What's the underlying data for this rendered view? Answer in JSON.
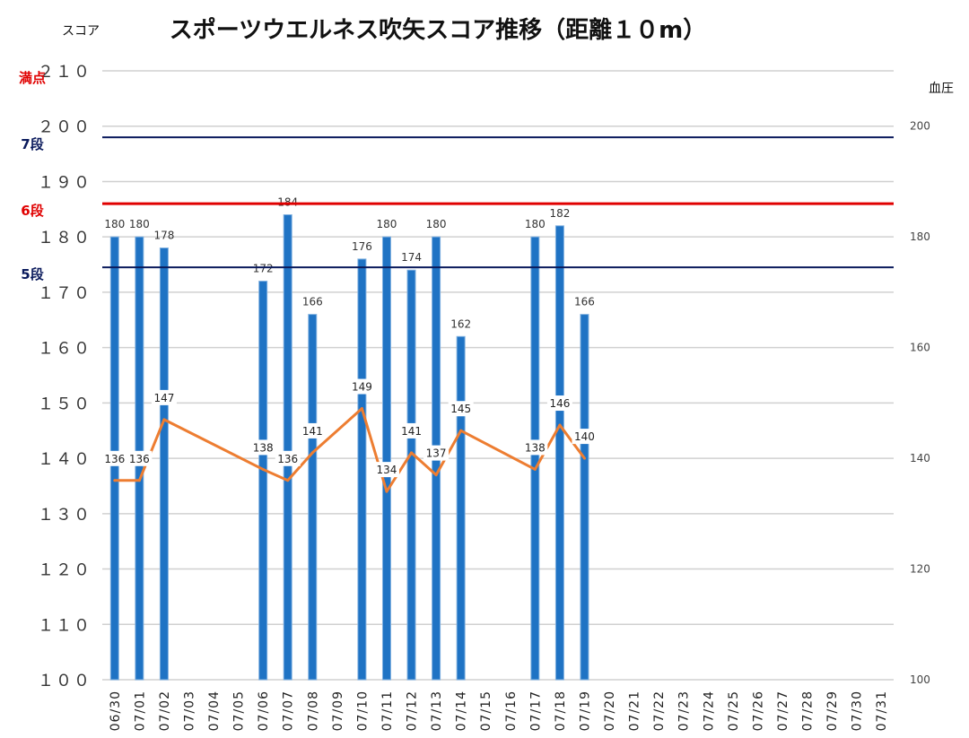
{
  "chart_data": {
    "type": "bar",
    "title": "スポーツウエルネス吹矢スコア推移（距離１０m）",
    "ylabel": "スコア",
    "y2label": "血圧",
    "ylim": [
      100,
      210
    ],
    "y2lim": [
      100,
      210
    ],
    "y_ticks": [
      "１００",
      "１１０",
      "１２０",
      "１３０",
      "１４０",
      "１５０",
      "１６０",
      "１７０",
      "１８０",
      "１９０",
      "２００",
      "２１０"
    ],
    "y2_ticks": [
      "100",
      "120",
      "140",
      "160",
      "180",
      "200"
    ],
    "grid": true,
    "categories": [
      "06/30",
      "07/01",
      "07/02",
      "07/03",
      "07/04",
      "07/05",
      "07/06",
      "07/07",
      "07/08",
      "07/09",
      "07/10",
      "07/11",
      "07/12",
      "07/13",
      "07/14",
      "07/15",
      "07/16",
      "07/17",
      "07/18",
      "07/19",
      "07/20",
      "07/21",
      "07/22",
      "07/23",
      "07/24",
      "07/25",
      "07/26",
      "07/27",
      "07/28",
      "07/29",
      "07/30",
      "07/31"
    ],
    "series": [
      {
        "kind": "bar",
        "axis": "left",
        "color": "#1f73c4",
        "values": [
          180,
          180,
          178,
          null,
          null,
          null,
          172,
          184,
          166,
          null,
          176,
          180,
          174,
          180,
          162,
          null,
          null,
          180,
          182,
          166,
          null,
          null,
          null,
          null,
          null,
          null,
          null,
          null,
          null,
          null,
          null,
          null
        ]
      },
      {
        "kind": "line",
        "axis": "right",
        "color": "#ed7d31",
        "values": [
          136,
          136,
          147,
          null,
          null,
          null,
          138,
          136,
          141,
          null,
          149,
          134,
          141,
          137,
          145,
          null,
          null,
          138,
          146,
          140,
          null,
          null,
          null,
          null,
          null,
          null,
          null,
          null,
          null,
          null,
          null,
          null
        ]
      }
    ],
    "reference_lines": [
      {
        "label": "満点",
        "value": 210,
        "color": "#e00000"
      },
      {
        "label": "7段",
        "value": 198,
        "color": "#0a1a5c"
      },
      {
        "label": "6段",
        "value": 186,
        "color": "#e00000"
      },
      {
        "label": "5段",
        "value": 174.5,
        "color": "#0a1a5c"
      }
    ]
  }
}
